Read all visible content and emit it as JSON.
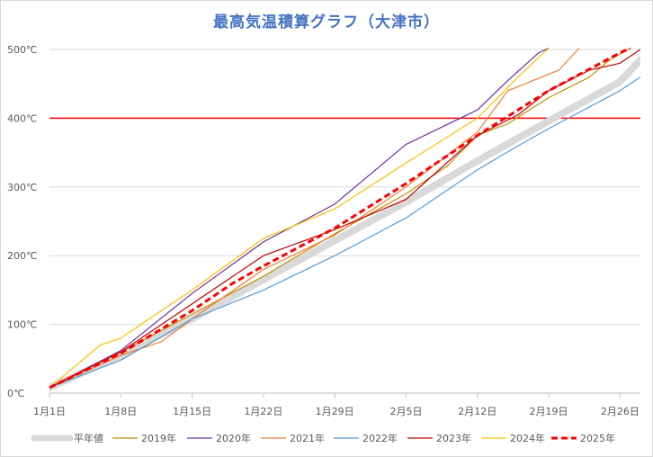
{
  "chart_data": {
    "type": "line",
    "title": "最高気温積算グラフ（大津市）",
    "x_tick_labels": [
      "1月1日",
      "1月8日",
      "1月15日",
      "1月22日",
      "1月29日",
      "2月5日",
      "2月12日",
      "2月19日",
      "2月26日"
    ],
    "x_tick_days": [
      1,
      8,
      15,
      22,
      29,
      36,
      43,
      50,
      57
    ],
    "x_range": [
      1,
      59
    ],
    "y_tick_labels": [
      "0℃",
      "100℃",
      "200℃",
      "300℃",
      "400℃",
      "500℃"
    ],
    "y_tick_values": [
      0,
      100,
      200,
      300,
      400,
      500
    ],
    "ylim": [
      0,
      500
    ],
    "grid": "horizontal",
    "legend_position": "bottom",
    "threshold": {
      "value": 400,
      "label": "400℃",
      "color": "#ff0000"
    },
    "series": [
      {
        "name": "平年値",
        "color": "#d9d9d9",
        "style": "thick",
        "points": [
          [
            1,
            8
          ],
          [
            8,
            55
          ],
          [
            15,
            108
          ],
          [
            22,
            165
          ],
          [
            29,
            222
          ],
          [
            36,
            278
          ],
          [
            43,
            338
          ],
          [
            50,
            396
          ],
          [
            57,
            453
          ],
          [
            59,
            485
          ]
        ]
      },
      {
        "name": "2019年",
        "color": "#bf9000",
        "style": "thin",
        "points": [
          [
            1,
            8
          ],
          [
            8,
            60
          ],
          [
            15,
            115
          ],
          [
            22,
            170
          ],
          [
            29,
            232
          ],
          [
            36,
            290
          ],
          [
            40,
            330
          ],
          [
            43,
            375
          ],
          [
            46,
            392
          ],
          [
            50,
            430
          ],
          [
            54,
            460
          ],
          [
            56,
            485
          ],
          [
            58,
            502
          ]
        ]
      },
      {
        "name": "2020年",
        "color": "#7030a0",
        "style": "thin",
        "points": [
          [
            1,
            8
          ],
          [
            8,
            62
          ],
          [
            15,
            145
          ],
          [
            22,
            220
          ],
          [
            29,
            275
          ],
          [
            31,
            300
          ],
          [
            36,
            362
          ],
          [
            43,
            412
          ],
          [
            46,
            455
          ],
          [
            49,
            495
          ],
          [
            50,
            502
          ]
        ]
      },
      {
        "name": "2021年",
        "color": "#ed7d31",
        "style": "thin",
        "points": [
          [
            1,
            8
          ],
          [
            8,
            55
          ],
          [
            12,
            75
          ],
          [
            15,
            108
          ],
          [
            22,
            180
          ],
          [
            29,
            230
          ],
          [
            36,
            300
          ],
          [
            43,
            380
          ],
          [
            46,
            440
          ],
          [
            51,
            470
          ],
          [
            53,
            502
          ]
        ]
      },
      {
        "name": "2022年",
        "color": "#5b9bd5",
        "style": "thin",
        "points": [
          [
            1,
            8
          ],
          [
            8,
            48
          ],
          [
            15,
            108
          ],
          [
            22,
            150
          ],
          [
            29,
            200
          ],
          [
            36,
            255
          ],
          [
            43,
            325
          ],
          [
            47,
            360
          ],
          [
            50,
            385
          ],
          [
            57,
            440
          ],
          [
            59,
            460
          ]
        ]
      },
      {
        "name": "2023年",
        "color": "#c00000",
        "style": "thin",
        "points": [
          [
            1,
            8
          ],
          [
            8,
            60
          ],
          [
            15,
            130
          ],
          [
            22,
            200
          ],
          [
            29,
            238
          ],
          [
            36,
            282
          ],
          [
            43,
            375
          ],
          [
            47,
            405
          ],
          [
            50,
            440
          ],
          [
            54,
            470
          ],
          [
            57,
            480
          ],
          [
            59,
            500
          ]
        ]
      },
      {
        "name": "2024年",
        "color": "#ffc000",
        "style": "thin",
        "points": [
          [
            1,
            8
          ],
          [
            6,
            70
          ],
          [
            8,
            80
          ],
          [
            15,
            150
          ],
          [
            22,
            225
          ],
          [
            29,
            268
          ],
          [
            36,
            335
          ],
          [
            43,
            400
          ],
          [
            47,
            460
          ],
          [
            50,
            502
          ]
        ]
      },
      {
        "name": "2025年",
        "color": "#ff0000",
        "style": "dashed",
        "points": [
          [
            1,
            8
          ],
          [
            8,
            58
          ],
          [
            15,
            120
          ],
          [
            19,
            160
          ],
          [
            22,
            185
          ],
          [
            29,
            240
          ],
          [
            36,
            305
          ],
          [
            43,
            375
          ],
          [
            50,
            440
          ],
          [
            57,
            495
          ],
          [
            58,
            502
          ]
        ]
      }
    ]
  }
}
